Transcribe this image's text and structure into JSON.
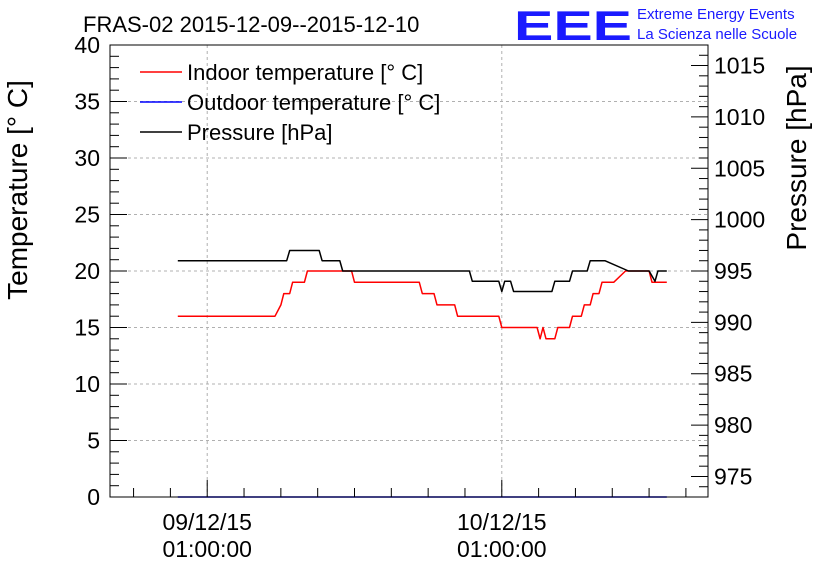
{
  "chart_data": {
    "type": "line",
    "title": "FRAS-02 2015-12-09--2015-12-10",
    "ylabel": "Temperature [° C]",
    "y2label": "Pressure [hPa]",
    "xlabel": "",
    "ylim": [
      0,
      40
    ],
    "y2lim": [
      973,
      1017
    ],
    "xlim": [
      -0.33,
      1.7
    ],
    "grid": true,
    "legend_position": "top-left",
    "yticks": [
      0,
      5,
      10,
      15,
      20,
      25,
      30,
      35,
      40
    ],
    "y2ticks": [
      975,
      980,
      985,
      990,
      995,
      1000,
      1005,
      1010,
      1015
    ],
    "xticks": [
      {
        "value": 0,
        "line1": "09/12/15",
        "line2": "01:00:00"
      },
      {
        "value": 1,
        "line1": "10/12/15",
        "line2": "01:00:00"
      }
    ],
    "x_unit": "days since 09/12/15 01:00:00",
    "series": [
      {
        "name": "Indoor temperature [° C]",
        "axis": "left",
        "color": "#ff0000",
        "points": [
          [
            -0.1,
            16
          ],
          [
            0.23,
            16
          ],
          [
            0.25,
            17
          ],
          [
            0.26,
            18
          ],
          [
            0.28,
            18
          ],
          [
            0.29,
            19
          ],
          [
            0.33,
            19
          ],
          [
            0.34,
            20
          ],
          [
            0.49,
            20
          ],
          [
            0.5,
            19
          ],
          [
            0.72,
            19
          ],
          [
            0.73,
            18
          ],
          [
            0.77,
            18
          ],
          [
            0.78,
            17
          ],
          [
            0.84,
            17
          ],
          [
            0.85,
            16
          ],
          [
            0.99,
            16
          ],
          [
            1.0,
            15
          ],
          [
            1.12,
            15
          ],
          [
            1.13,
            14
          ],
          [
            1.14,
            15
          ],
          [
            1.15,
            14
          ],
          [
            1.18,
            14
          ],
          [
            1.19,
            15
          ],
          [
            1.23,
            15
          ],
          [
            1.24,
            16
          ],
          [
            1.27,
            16
          ],
          [
            1.28,
            17
          ],
          [
            1.3,
            17
          ],
          [
            1.31,
            18
          ],
          [
            1.33,
            18
          ],
          [
            1.34,
            19
          ],
          [
            1.38,
            19
          ],
          [
            1.42,
            20
          ],
          [
            1.5,
            20
          ],
          [
            1.51,
            19
          ],
          [
            1.56,
            19
          ]
        ]
      },
      {
        "name": "Outdoor temperature [° C]",
        "axis": "left",
        "color": "#0000ff",
        "points": [
          [
            -0.1,
            0
          ],
          [
            1.56,
            0
          ]
        ]
      },
      {
        "name": "Pressure [hPa]",
        "axis": "right",
        "color": "#000000",
        "points": [
          [
            -0.1,
            996
          ],
          [
            0.27,
            996
          ],
          [
            0.28,
            997
          ],
          [
            0.38,
            997
          ],
          [
            0.39,
            996
          ],
          [
            0.45,
            996
          ],
          [
            0.46,
            995
          ],
          [
            0.89,
            995
          ],
          [
            0.9,
            994
          ],
          [
            0.99,
            994
          ],
          [
            1.0,
            993
          ],
          [
            1.01,
            994
          ],
          [
            1.03,
            994
          ],
          [
            1.04,
            993
          ],
          [
            1.17,
            993
          ],
          [
            1.18,
            994
          ],
          [
            1.23,
            994
          ],
          [
            1.24,
            995
          ],
          [
            1.29,
            995
          ],
          [
            1.3,
            996
          ],
          [
            1.35,
            996
          ],
          [
            1.43,
            995
          ],
          [
            1.5,
            995
          ],
          [
            1.52,
            994
          ],
          [
            1.53,
            995
          ],
          [
            1.56,
            995
          ]
        ]
      }
    ]
  },
  "logo": {
    "mark": "EEE",
    "line1": "Extreme Energy Events",
    "line2": "La Scienza nelle Scuole",
    "color": "#1a1aff"
  }
}
